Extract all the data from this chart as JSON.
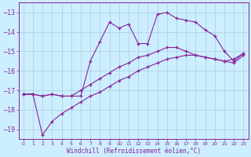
{
  "xlabel": "Windchill (Refroidissement éolien,°C)",
  "background_color": "#cceeff",
  "grid_color": "#aaccdd",
  "line_color": "#882299",
  "x_min": -0.5,
  "x_max": 23.5,
  "y_min": -19.5,
  "y_max": -12.5,
  "yticks": [
    -13,
    -14,
    -15,
    -16,
    -17,
    -18,
    -19
  ],
  "xticks": [
    0,
    1,
    2,
    3,
    4,
    5,
    6,
    7,
    8,
    9,
    10,
    11,
    12,
    13,
    14,
    15,
    16,
    17,
    18,
    19,
    20,
    21,
    22,
    23
  ],
  "series": [
    {
      "x": [
        0,
        1,
        2,
        3,
        4,
        5,
        6,
        7,
        8,
        9,
        10,
        11,
        12,
        13,
        14,
        15,
        16,
        17,
        18,
        19,
        20,
        21,
        22,
        23
      ],
      "y": [
        -17.2,
        -17.2,
        -17.3,
        -17.2,
        -17.3,
        -17.3,
        -17.3,
        -15.5,
        -14.5,
        -13.5,
        -13.8,
        -13.6,
        -14.6,
        -14.6,
        -13.1,
        -13.0,
        -13.3,
        -13.4,
        -13.5,
        -13.9,
        -14.2,
        -15.0,
        -15.5,
        -15.1
      ]
    },
    {
      "x": [
        0,
        1,
        2,
        3,
        4,
        5,
        6,
        7,
        8,
        9,
        10,
        11,
        12,
        13,
        14,
        15,
        16,
        17,
        18,
        19,
        20,
        21,
        22,
        23
      ],
      "y": [
        -17.2,
        -17.2,
        -17.3,
        -17.2,
        -17.3,
        -17.3,
        -17.0,
        -16.7,
        -16.4,
        -16.1,
        -15.8,
        -15.6,
        -15.3,
        -15.2,
        -15.0,
        -14.8,
        -14.8,
        -15.0,
        -15.2,
        -15.3,
        -15.4,
        -15.5,
        -15.4,
        -15.1
      ]
    },
    {
      "x": [
        0,
        1,
        2,
        3,
        4,
        5,
        6,
        7,
        8,
        9,
        10,
        11,
        12,
        13,
        14,
        15,
        16,
        17,
        18,
        19,
        20,
        21,
        22,
        23
      ],
      "y": [
        -17.2,
        -17.2,
        -19.3,
        -18.6,
        -18.2,
        -17.9,
        -17.6,
        -17.3,
        -17.1,
        -16.8,
        -16.5,
        -16.3,
        -16.0,
        -15.8,
        -15.6,
        -15.4,
        -15.3,
        -15.2,
        -15.2,
        -15.3,
        -15.4,
        -15.5,
        -15.6,
        -15.2
      ]
    }
  ]
}
